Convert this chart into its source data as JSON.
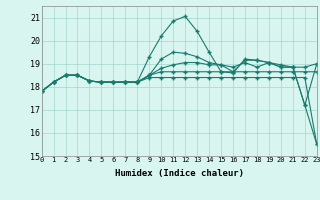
{
  "x": [
    0,
    1,
    2,
    3,
    4,
    5,
    6,
    7,
    8,
    9,
    10,
    11,
    12,
    13,
    14,
    15,
    16,
    17,
    18,
    19,
    20,
    21,
    22,
    23
  ],
  "line_peak": [
    17.8,
    18.2,
    18.5,
    18.5,
    18.25,
    18.2,
    18.2,
    18.2,
    18.2,
    19.3,
    20.2,
    20.85,
    21.05,
    20.4,
    19.5,
    18.65,
    18.6,
    19.2,
    19.15,
    19.05,
    18.85,
    18.85,
    17.2,
    15.5
  ],
  "line_mid1": [
    17.8,
    18.2,
    18.5,
    18.5,
    18.25,
    18.2,
    18.2,
    18.2,
    18.2,
    18.5,
    19.2,
    19.5,
    19.45,
    19.3,
    19.05,
    18.95,
    18.65,
    19.15,
    19.15,
    19.05,
    18.85,
    18.85,
    17.2,
    19.0
  ],
  "line_mid2": [
    17.8,
    18.2,
    18.5,
    18.5,
    18.25,
    18.2,
    18.2,
    18.2,
    18.2,
    18.5,
    18.8,
    18.95,
    19.05,
    19.05,
    18.95,
    18.95,
    18.85,
    19.05,
    18.85,
    19.05,
    18.95,
    18.85,
    18.85,
    19.0
  ],
  "line_flat": [
    17.8,
    18.2,
    18.5,
    18.5,
    18.25,
    18.2,
    18.2,
    18.2,
    18.2,
    18.5,
    18.65,
    18.65,
    18.65,
    18.65,
    18.65,
    18.65,
    18.65,
    18.65,
    18.65,
    18.65,
    18.65,
    18.65,
    18.65,
    18.65
  ],
  "line_diag": [
    17.8,
    18.2,
    18.5,
    18.5,
    18.25,
    18.2,
    18.2,
    18.2,
    18.2,
    18.4,
    18.4,
    18.4,
    18.4,
    18.4,
    18.4,
    18.4,
    18.4,
    18.4,
    18.4,
    18.4,
    18.4,
    18.4,
    18.4,
    15.5
  ],
  "line_color": "#1a7a6e",
  "bg_color": "#d8f5f0",
  "grid_color": "#a0d8cf",
  "xlabel": "Humidex (Indice chaleur)",
  "ylim": [
    15,
    21.5
  ],
  "xlim": [
    0,
    23
  ],
  "yticks": [
    15,
    16,
    17,
    18,
    19,
    20,
    21
  ],
  "xticks": [
    0,
    1,
    2,
    3,
    4,
    5,
    6,
    7,
    8,
    9,
    10,
    11,
    12,
    13,
    14,
    15,
    16,
    17,
    18,
    19,
    20,
    21,
    22,
    23
  ]
}
